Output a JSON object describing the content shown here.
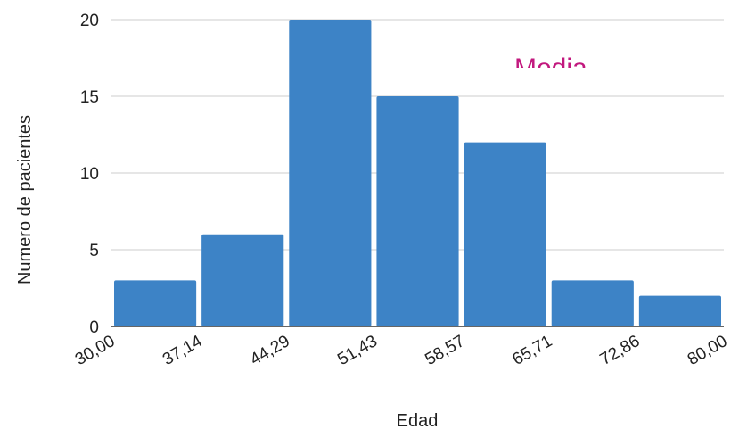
{
  "chart_data": {
    "type": "bar",
    "title": "",
    "xlabel": "Edad",
    "ylabel": "Numero de pacientes",
    "x_edges": [
      "30,00",
      "37,14",
      "44,29",
      "51,43",
      "58,57",
      "65,71",
      "72,86",
      "80,00"
    ],
    "bins": [
      {
        "from": 30.0,
        "to": 37.14,
        "value": 3
      },
      {
        "from": 37.14,
        "to": 44.29,
        "value": 6
      },
      {
        "from": 44.29,
        "to": 51.43,
        "value": 20
      },
      {
        "from": 51.43,
        "to": 58.57,
        "value": 15
      },
      {
        "from": 58.57,
        "to": 65.71,
        "value": 12
      },
      {
        "from": 65.71,
        "to": 72.86,
        "value": 3
      },
      {
        "from": 72.86,
        "to": 80.0,
        "value": 2
      }
    ],
    "yticks": [
      0,
      5,
      10,
      15,
      20
    ],
    "ylim": [
      0,
      20
    ],
    "grid": true,
    "legend": "none",
    "annotation": {
      "text": "Media",
      "color": "#c2187e"
    },
    "bar_color": "#3d83c6"
  }
}
